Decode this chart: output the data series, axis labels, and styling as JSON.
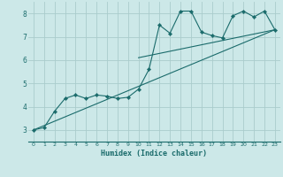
{
  "title": "",
  "xlabel": "Humidex (Indice chaleur)",
  "ylabel": "",
  "background_color": "#cce8e8",
  "grid_color": "#aacccc",
  "line_color": "#1a6b6b",
  "xlim": [
    -0.5,
    23.5
  ],
  "ylim": [
    2.5,
    8.5
  ],
  "xticks": [
    0,
    1,
    2,
    3,
    4,
    5,
    6,
    7,
    8,
    9,
    10,
    11,
    12,
    13,
    14,
    15,
    16,
    17,
    18,
    19,
    20,
    21,
    22,
    23
  ],
  "yticks": [
    3,
    4,
    5,
    6,
    7,
    8
  ],
  "series1_x": [
    0,
    1,
    2,
    3,
    4,
    5,
    6,
    7,
    8,
    9,
    10,
    11,
    12,
    13,
    14,
    15,
    16,
    17,
    18,
    19,
    20,
    21,
    22,
    23
  ],
  "series1_y": [
    3.0,
    3.1,
    3.8,
    4.35,
    4.5,
    4.35,
    4.5,
    4.45,
    4.35,
    4.4,
    4.75,
    5.6,
    7.5,
    7.15,
    8.1,
    8.1,
    7.2,
    7.05,
    6.95,
    7.9,
    8.1,
    7.85,
    8.1,
    7.3
  ],
  "series2_x": [
    0,
    23
  ],
  "series2_y": [
    3.0,
    7.3
  ],
  "series3_x": [
    10,
    23
  ],
  "series3_y": [
    6.1,
    7.3
  ],
  "marker": "D",
  "marker_size": 2.2
}
